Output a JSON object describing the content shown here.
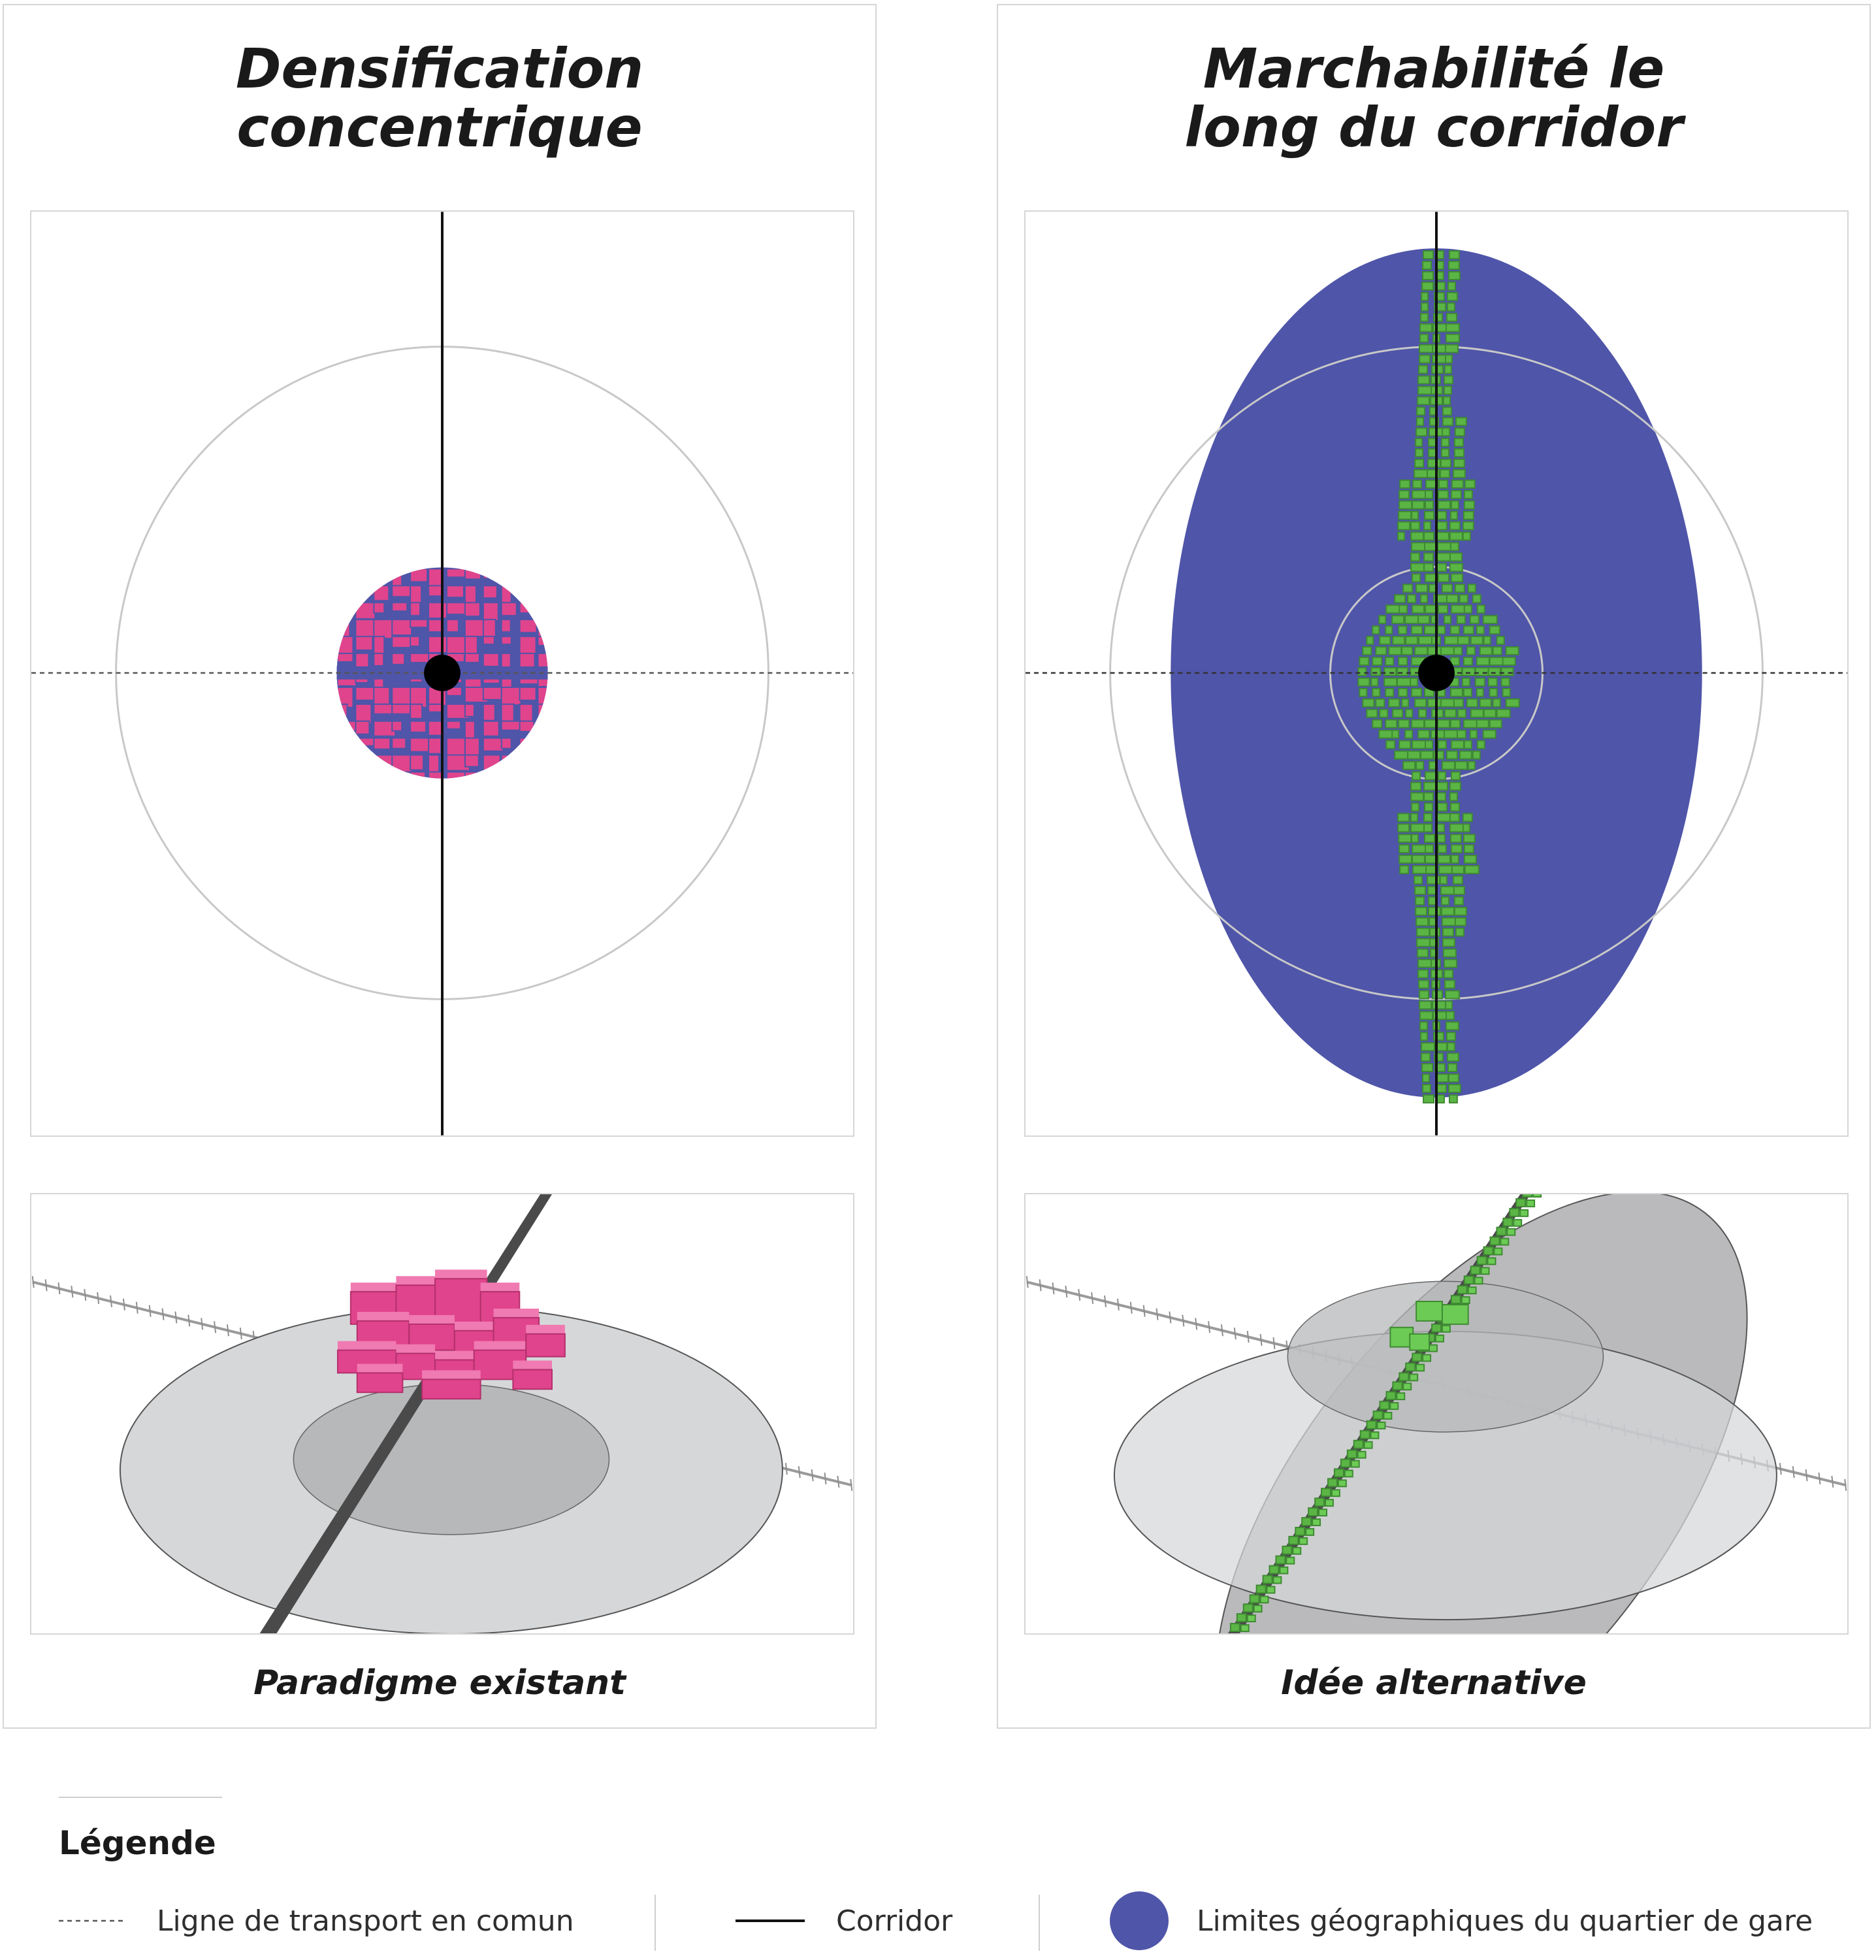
{
  "panels": [
    {
      "title_line1": "Densification",
      "title_line2": "concentrique",
      "caption": "Paradigme existant"
    },
    {
      "title_line1": "Marchabilité le",
      "title_line2": "long du corridor",
      "caption": "Idée alternative"
    }
  ],
  "legend": {
    "title": "Légende",
    "items": [
      {
        "label": "Ligne de transport en comun",
        "symbol": "dashed-line-icon"
      },
      {
        "label": "Corridor",
        "symbol": "solid-line-icon"
      },
      {
        "label": "Limites géographiques du quartier de gare",
        "symbol": "blue-disc-icon"
      }
    ]
  },
  "colors": {
    "magenta_buildings": "#e0448c",
    "station_area_blue": "#4f55a8",
    "green_buildings": "#5bb545",
    "station_dot": "#000000",
    "rings": "#c8c8c8",
    "persp_outer_area": "#d6d7d9",
    "persp_inner_area": "#b7b8ba",
    "corridor_road": "#4a4a4a"
  }
}
